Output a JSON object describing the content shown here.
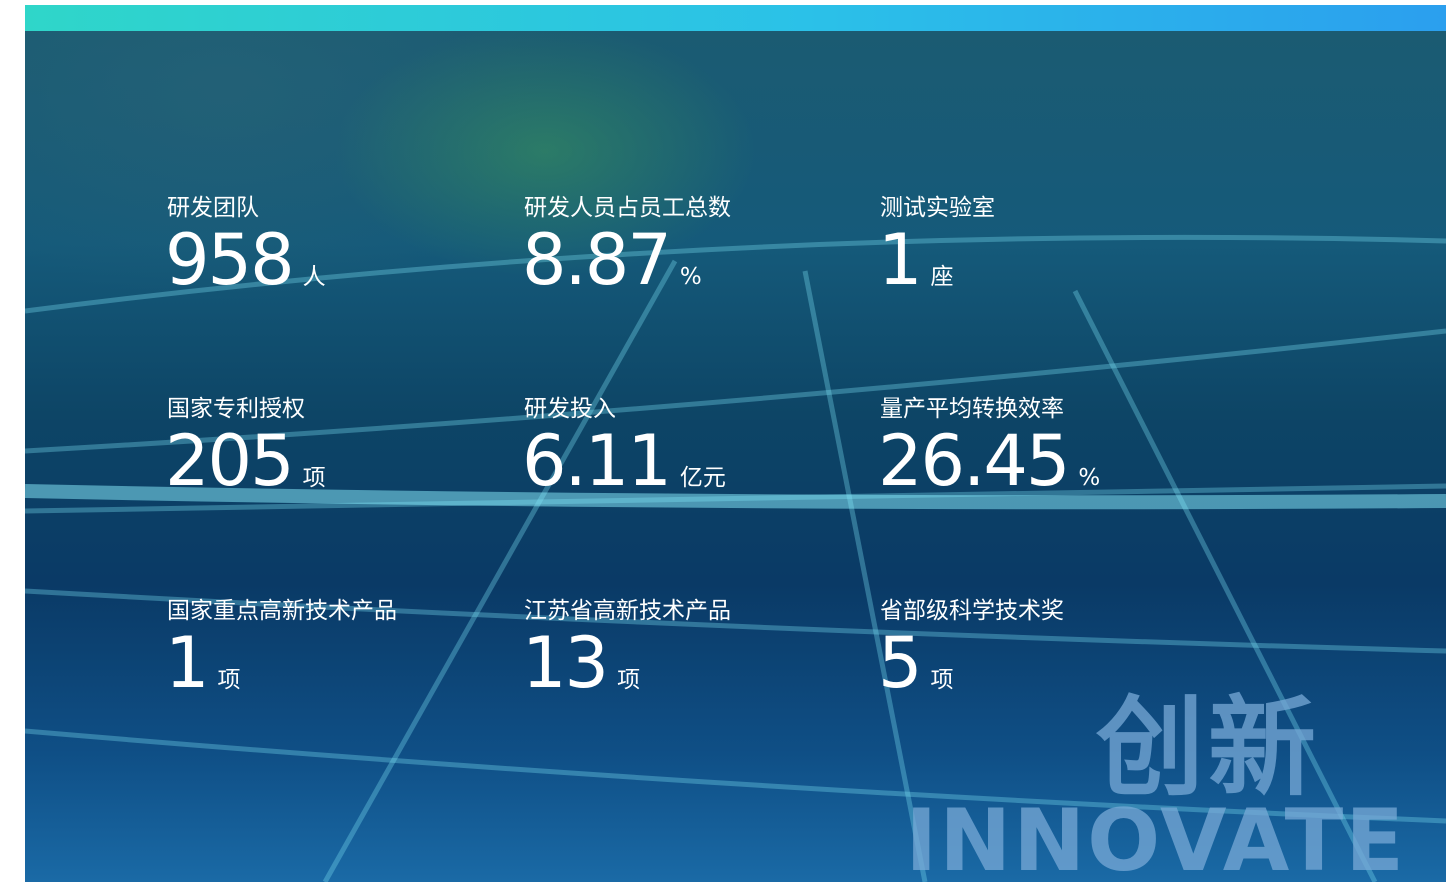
{
  "stats": [
    {
      "label": "研发团队",
      "value": 958,
      "unit": "人"
    },
    {
      "label": "研发人员占员工总数",
      "value": 8.87,
      "unit": "%"
    },
    {
      "label": "测试实验室",
      "value": 1,
      "unit": "座"
    },
    {
      "label": "国家专利授权",
      "value": 205,
      "unit": "项"
    },
    {
      "label": "研发投入",
      "value": 6.11,
      "unit": "亿元"
    },
    {
      "label": "量产平均转换效率",
      "value": 26.45,
      "unit": "%"
    },
    {
      "label": "国家重点高新技术产品",
      "value": 1,
      "unit": "项"
    },
    {
      "label": "江苏省高新技术产品",
      "value": 13,
      "unit": "项"
    },
    {
      "label": "省部级科学技术奖",
      "value": 5,
      "unit": "项"
    }
  ],
  "watermark": {
    "title": "创新",
    "subtitle": "INNOVATE"
  }
}
